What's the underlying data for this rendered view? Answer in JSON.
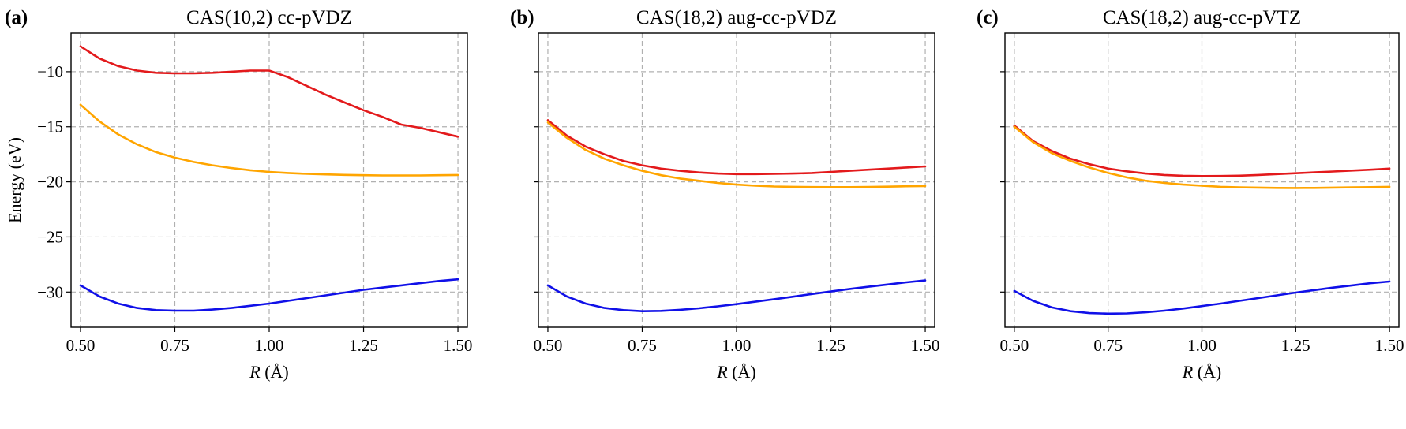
{
  "colors": {
    "red": "#e31a1c",
    "orange": "#ffa500",
    "blue": "#1010e8",
    "grid": "#b0b0b0"
  },
  "chart_data": [
    {
      "type": "line",
      "panel_label": "(a)",
      "title": "CAS(10,2) cc-pVDZ",
      "xlabel": "R (Å)",
      "xlabel_var": "R",
      "xlabel_unit": "(Å)",
      "ylabel": "Energy (eV)",
      "xlim": [
        0.475,
        1.525
      ],
      "ylim": [
        -33.2,
        -6.5
      ],
      "grid": true,
      "x_ticks": [
        "0.50",
        "0.75",
        "1.00",
        "1.25",
        "1.50"
      ],
      "x_tick_values": [
        0.5,
        0.75,
        1.0,
        1.25,
        1.5
      ],
      "y_ticks": [
        "−10",
        "−15",
        "−20",
        "−25",
        "−30"
      ],
      "y_tick_values": [
        -10,
        -15,
        -20,
        -25,
        -30
      ],
      "x": [
        0.5,
        0.55,
        0.6,
        0.65,
        0.7,
        0.75,
        0.8,
        0.85,
        0.9,
        0.95,
        1.0,
        1.05,
        1.1,
        1.15,
        1.2,
        1.25,
        1.3,
        1.35,
        1.4,
        1.45,
        1.5
      ],
      "series": [
        {
          "color": "red",
          "values": [
            -7.7,
            -8.8,
            -9.5,
            -9.9,
            -10.1,
            -10.15,
            -10.15,
            -10.1,
            -10.0,
            -9.9,
            -9.9,
            -10.5,
            -11.3,
            -12.1,
            -12.8,
            -13.5,
            -14.1,
            -14.8,
            -15.1,
            -15.5,
            -15.9
          ]
        },
        {
          "color": "orange",
          "values": [
            -13.0,
            -14.5,
            -15.7,
            -16.6,
            -17.3,
            -17.8,
            -18.2,
            -18.5,
            -18.75,
            -18.95,
            -19.1,
            -19.2,
            -19.28,
            -19.33,
            -19.37,
            -19.4,
            -19.42,
            -19.42,
            -19.42,
            -19.4,
            -19.38
          ]
        },
        {
          "color": "blue",
          "values": [
            -29.4,
            -30.4,
            -31.05,
            -31.45,
            -31.65,
            -31.7,
            -31.7,
            -31.6,
            -31.45,
            -31.25,
            -31.05,
            -30.8,
            -30.55,
            -30.3,
            -30.05,
            -29.8,
            -29.6,
            -29.4,
            -29.2,
            -29.0,
            -28.85
          ]
        }
      ]
    },
    {
      "type": "line",
      "panel_label": "(b)",
      "title": "CAS(18,2) aug-cc-pVDZ",
      "xlabel": "R (Å)",
      "xlabel_var": "R",
      "xlabel_unit": "(Å)",
      "ylabel": "",
      "xlim": [
        0.475,
        1.525
      ],
      "ylim": [
        -33.2,
        -6.5
      ],
      "grid": true,
      "x_ticks": [
        "0.50",
        "0.75",
        "1.00",
        "1.25",
        "1.50"
      ],
      "x_tick_values": [
        0.5,
        0.75,
        1.0,
        1.25,
        1.5
      ],
      "y_ticks": [
        "",
        "",
        "",
        "",
        ""
      ],
      "y_tick_values": [
        -10,
        -15,
        -20,
        -25,
        -30
      ],
      "x": [
        0.5,
        0.55,
        0.6,
        0.65,
        0.7,
        0.75,
        0.8,
        0.85,
        0.9,
        0.95,
        1.0,
        1.05,
        1.1,
        1.15,
        1.2,
        1.25,
        1.3,
        1.35,
        1.4,
        1.45,
        1.5
      ],
      "series": [
        {
          "color": "red",
          "values": [
            -14.4,
            -15.8,
            -16.8,
            -17.5,
            -18.1,
            -18.5,
            -18.8,
            -19.0,
            -19.15,
            -19.25,
            -19.3,
            -19.3,
            -19.28,
            -19.25,
            -19.2,
            -19.1,
            -19.0,
            -18.9,
            -18.8,
            -18.7,
            -18.6
          ]
        },
        {
          "color": "orange",
          "values": [
            -14.6,
            -16.0,
            -17.1,
            -17.9,
            -18.5,
            -19.0,
            -19.4,
            -19.7,
            -19.9,
            -20.1,
            -20.25,
            -20.35,
            -20.42,
            -20.45,
            -20.47,
            -20.48,
            -20.48,
            -20.46,
            -20.44,
            -20.4,
            -20.38
          ]
        },
        {
          "color": "blue",
          "values": [
            -29.4,
            -30.4,
            -31.05,
            -31.45,
            -31.65,
            -31.75,
            -31.72,
            -31.62,
            -31.48,
            -31.3,
            -31.1,
            -30.88,
            -30.65,
            -30.42,
            -30.18,
            -29.95,
            -29.72,
            -29.52,
            -29.32,
            -29.12,
            -28.95
          ]
        }
      ]
    },
    {
      "type": "line",
      "panel_label": "(c)",
      "title": "CAS(18,2) aug-cc-pVTZ",
      "xlabel": "R (Å)",
      "xlabel_var": "R",
      "xlabel_unit": "(Å)",
      "ylabel": "",
      "xlim": [
        0.475,
        1.525
      ],
      "ylim": [
        -33.2,
        -6.5
      ],
      "grid": true,
      "x_ticks": [
        "0.50",
        "0.75",
        "1.00",
        "1.25",
        "1.50"
      ],
      "x_tick_values": [
        0.5,
        0.75,
        1.0,
        1.25,
        1.5
      ],
      "y_ticks": [
        "",
        "",
        "",
        "",
        ""
      ],
      "y_tick_values": [
        -10,
        -15,
        -20,
        -25,
        -30
      ],
      "x": [
        0.5,
        0.55,
        0.6,
        0.65,
        0.7,
        0.75,
        0.8,
        0.85,
        0.9,
        0.95,
        1.0,
        1.05,
        1.1,
        1.15,
        1.2,
        1.25,
        1.3,
        1.35,
        1.4,
        1.45,
        1.5
      ],
      "series": [
        {
          "color": "red",
          "values": [
            -14.9,
            -16.3,
            -17.2,
            -17.9,
            -18.4,
            -18.8,
            -19.05,
            -19.25,
            -19.38,
            -19.45,
            -19.48,
            -19.47,
            -19.44,
            -19.38,
            -19.3,
            -19.22,
            -19.14,
            -19.06,
            -18.98,
            -18.9,
            -18.8
          ]
        },
        {
          "color": "orange",
          "values": [
            -15.0,
            -16.4,
            -17.4,
            -18.1,
            -18.7,
            -19.2,
            -19.6,
            -19.9,
            -20.1,
            -20.25,
            -20.35,
            -20.45,
            -20.5,
            -20.52,
            -20.55,
            -20.56,
            -20.55,
            -20.52,
            -20.5,
            -20.48,
            -20.45
          ]
        },
        {
          "color": "blue",
          "values": [
            -29.9,
            -30.8,
            -31.4,
            -31.75,
            -31.92,
            -31.97,
            -31.95,
            -31.85,
            -31.7,
            -31.5,
            -31.28,
            -31.05,
            -30.8,
            -30.55,
            -30.3,
            -30.05,
            -29.82,
            -29.6,
            -29.4,
            -29.2,
            -29.05
          ]
        }
      ]
    }
  ]
}
